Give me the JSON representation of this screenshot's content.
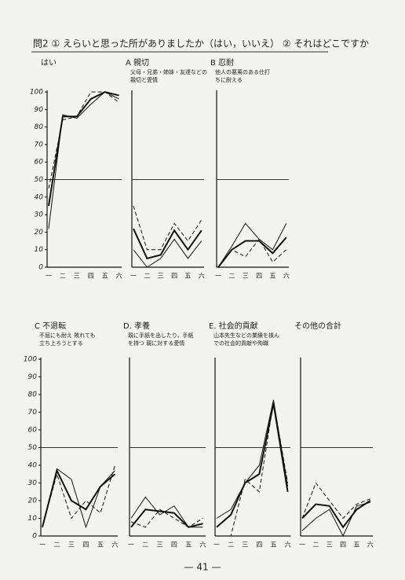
{
  "page": {
    "title": "問2 ① えらいと思った所がありましたか（はい，いいえ） ② それはどこですか",
    "page_number": "— 41 —"
  },
  "chart_data": [
    {
      "type": "line",
      "title": "はい",
      "categories": [
        "一",
        "二",
        "三",
        "四",
        "五",
        "六"
      ],
      "ylim": [
        0,
        100
      ],
      "yticks": [
        0,
        10,
        20,
        30,
        40,
        50,
        60,
        70,
        80,
        90,
        100
      ],
      "hline": 50,
      "series": [
        {
          "color": "#111",
          "style": "solid",
          "width": 2,
          "values": [
            35,
            86,
            86,
            96,
            100,
            98
          ]
        },
        {
          "color": "#111",
          "style": "solid",
          "width": 1,
          "values": [
            22,
            87,
            85,
            93,
            100,
            96
          ]
        },
        {
          "color": "#111",
          "style": "dashed",
          "width": 1,
          "values": [
            45,
            84,
            86,
            100,
            100,
            94
          ]
        }
      ]
    },
    {
      "type": "line",
      "title": "A 親切",
      "subtitle": [
        "父母・兄弟・姉妹・友達などの",
        "親切と愛情"
      ],
      "categories": [
        "一",
        "二",
        "三",
        "四",
        "五",
        "六"
      ],
      "ylim": [
        0,
        100
      ],
      "hline": 50,
      "series": [
        {
          "color": "#111",
          "style": "solid",
          "width": 2,
          "values": [
            22,
            5,
            7,
            21,
            10,
            21
          ]
        },
        {
          "color": "#111",
          "style": "solid",
          "width": 1,
          "values": [
            10,
            0,
            5,
            16,
            5,
            15
          ]
        },
        {
          "color": "#111",
          "style": "dashed",
          "width": 1,
          "values": [
            35,
            10,
            10,
            25,
            15,
            27
          ]
        }
      ]
    },
    {
      "type": "line",
      "title": "B 忍耐",
      "subtitle": [
        "他人の悪罵のある仕打",
        "ちに耐える"
      ],
      "categories": [
        "一",
        "二",
        "三",
        "四",
        "五",
        "六"
      ],
      "ylim": [
        0,
        100
      ],
      "hline": 50,
      "series": [
        {
          "color": "#111",
          "style": "solid",
          "width": 2,
          "values": [
            0,
            10,
            15,
            15,
            8,
            17
          ]
        },
        {
          "color": "#111",
          "style": "solid",
          "width": 1,
          "values": [
            0,
            12,
            25,
            16,
            10,
            25
          ]
        },
        {
          "color": "#111",
          "style": "dashed",
          "width": 1,
          "values": [
            0,
            10,
            6,
            16,
            3,
            10
          ]
        }
      ]
    },
    {
      "type": "line",
      "title": "C 不退転",
      "subtitle": [
        "不屈にも耐え 敗れても",
        "立ち上ろうとする"
      ],
      "categories": [
        "一",
        "二",
        "三",
        "四",
        "五",
        "六"
      ],
      "ylim": [
        0,
        100
      ],
      "yticks": [
        0,
        10,
        20,
        30,
        40,
        50,
        60,
        70,
        80,
        90,
        100
      ],
      "hline": 50,
      "series": [
        {
          "color": "#111",
          "style": "solid",
          "width": 2,
          "values": [
            5,
            37,
            20,
            15,
            28,
            35
          ]
        },
        {
          "color": "#111",
          "style": "solid",
          "width": 1,
          "values": [
            5,
            38,
            32,
            5,
            28,
            37
          ]
        },
        {
          "color": "#111",
          "style": "dashed",
          "width": 1,
          "values": [
            5,
            35,
            10,
            20,
            13,
            40
          ]
        }
      ]
    },
    {
      "type": "line",
      "title": "D. 孝養",
      "subtitle": [
        "親に手紙を出したり，手紙",
        "を持つ 親に対する愛情"
      ],
      "categories": [
        "一",
        "二",
        "三",
        "四",
        "五",
        "六"
      ],
      "ylim": [
        0,
        100
      ],
      "hline": 50,
      "series": [
        {
          "color": "#111",
          "style": "solid",
          "width": 2,
          "values": [
            5,
            15,
            14,
            13,
            5,
            7
          ]
        },
        {
          "color": "#111",
          "style": "solid",
          "width": 1,
          "values": [
            10,
            22,
            12,
            17,
            5,
            5
          ]
        },
        {
          "color": "#111",
          "style": "dashed",
          "width": 1,
          "values": [
            8,
            5,
            15,
            10,
            5,
            10
          ]
        }
      ]
    },
    {
      "type": "line",
      "title": "E. 社会的貢献",
      "subtitle": [
        "山本先生などの業績を挟ん",
        "での社会的貢献や殉職"
      ],
      "categories": [
        "一",
        "二",
        "三",
        "四",
        "五",
        "六"
      ],
      "ylim": [
        0,
        100
      ],
      "hline": 50,
      "series": [
        {
          "color": "#111",
          "style": "solid",
          "width": 2,
          "values": [
            5,
            12,
            30,
            35,
            75,
            25
          ]
        },
        {
          "color": "#111",
          "style": "solid",
          "width": 1,
          "values": [
            10,
            15,
            30,
            40,
            77,
            28
          ]
        },
        {
          "color": "#111",
          "style": "dashed",
          "width": 1,
          "values": [
            0,
            0,
            32,
            25,
            76,
            30
          ]
        }
      ]
    },
    {
      "type": "line",
      "title": "その他の合計",
      "categories": [
        "一",
        "二",
        "三",
        "四",
        "五",
        "六"
      ],
      "ylim": [
        0,
        100
      ],
      "hline": 50,
      "series": [
        {
          "color": "#111",
          "style": "solid",
          "width": 2,
          "values": [
            10,
            18,
            17,
            5,
            15,
            20
          ]
        },
        {
          "color": "#111",
          "style": "solid",
          "width": 1,
          "values": [
            3,
            10,
            15,
            0,
            17,
            19
          ]
        },
        {
          "color": "#111",
          "style": "dashed",
          "width": 1,
          "values": [
            10,
            30,
            20,
            10,
            18,
            21
          ]
        }
      ]
    }
  ]
}
